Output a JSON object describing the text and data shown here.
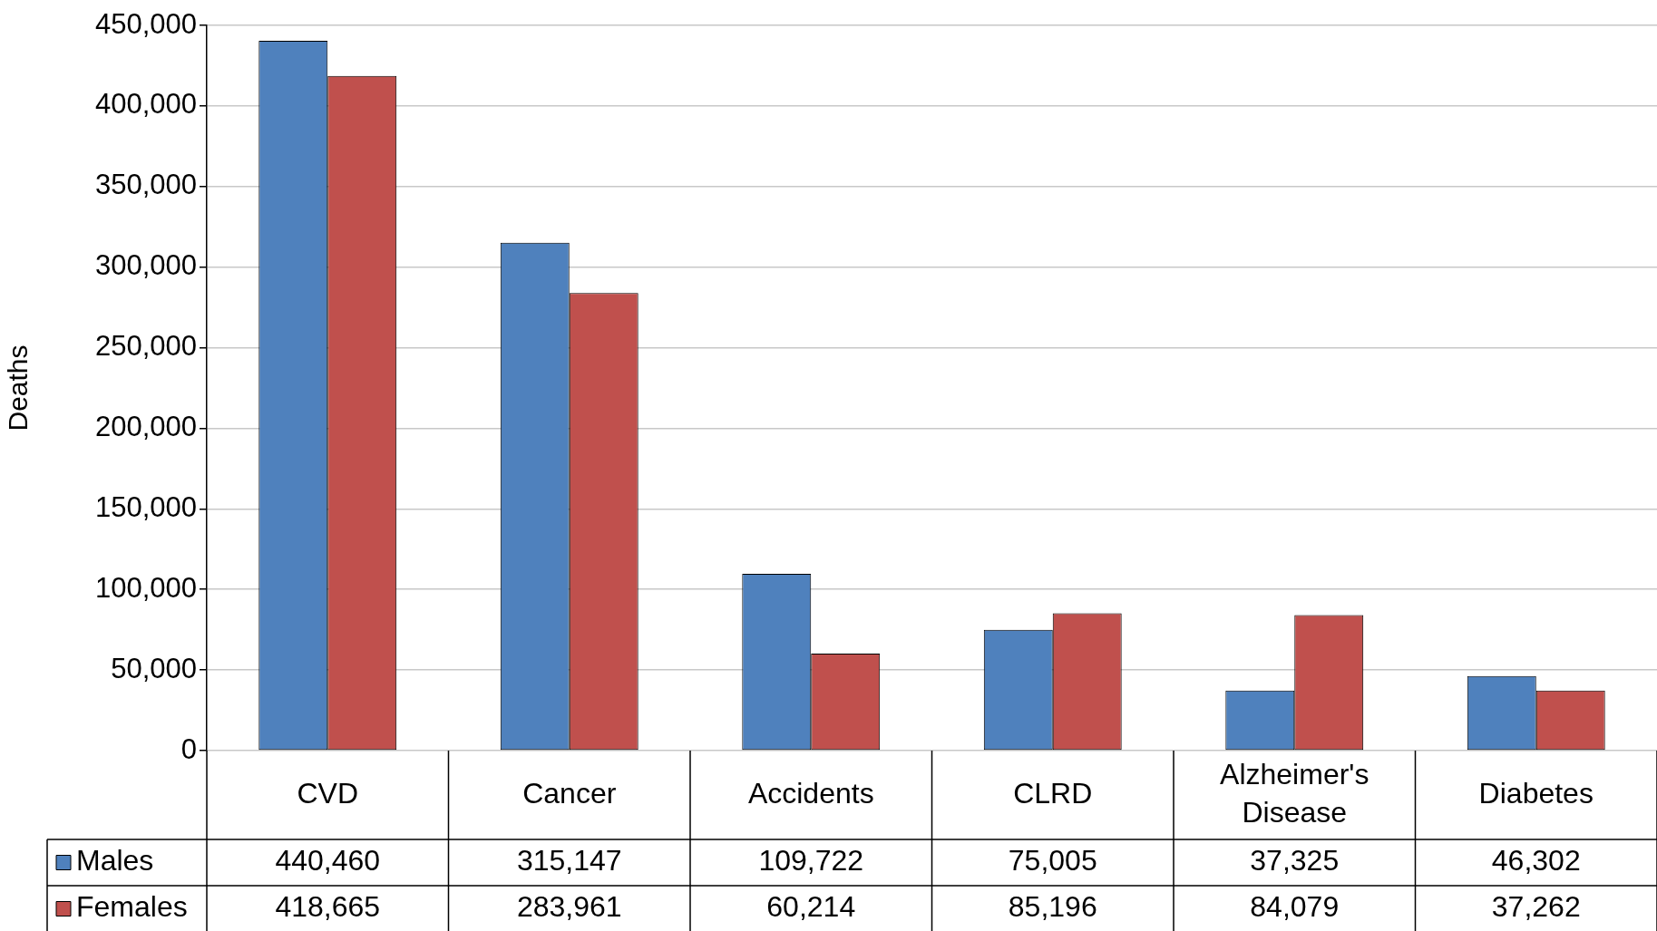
{
  "chart_data": {
    "type": "bar",
    "ylabel": "Deaths",
    "categories": [
      "CVD",
      "Cancer",
      "Accidents",
      "CLRD",
      "Alzheimer's Disease",
      "Diabetes"
    ],
    "series": [
      {
        "name": "Males",
        "color": "#4f81bd",
        "values": [
          440460,
          315147,
          109722,
          75005,
          37325,
          46302
        ],
        "value_labels": [
          "440,460",
          "315,147",
          "109,722",
          "75,005",
          "37,325",
          "46,302"
        ]
      },
      {
        "name": "Females",
        "color": "#c0504d",
        "values": [
          418665,
          283961,
          60214,
          85196,
          84079,
          37262
        ],
        "value_labels": [
          "418,665",
          "283,961",
          "60,214",
          "85,196",
          "84,079",
          "37,262"
        ]
      }
    ],
    "ylim": [
      0,
      450000
    ],
    "yticks": [
      {
        "value": 0,
        "label": "0"
      },
      {
        "value": 50000,
        "label": "50,000"
      },
      {
        "value": 100000,
        "label": "100,000"
      },
      {
        "value": 150000,
        "label": "150,000"
      },
      {
        "value": 200000,
        "label": "200,000"
      },
      {
        "value": 250000,
        "label": "250,000"
      },
      {
        "value": 300000,
        "label": "300,000"
      },
      {
        "value": 350000,
        "label": "350,000"
      },
      {
        "value": 400000,
        "label": "400,000"
      },
      {
        "value": 450000,
        "label": "450,000"
      }
    ],
    "grid": "y",
    "legend": "bottom"
  }
}
